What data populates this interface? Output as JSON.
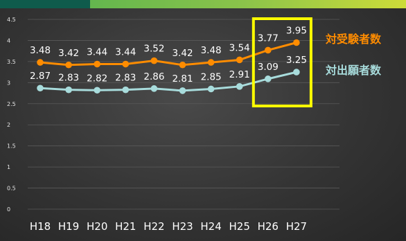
{
  "colors": {
    "series1": "#ff8c00",
    "series2": "#a8dcdc",
    "highlight": "#ffff00",
    "grid": "#5a5a5a"
  },
  "chart_data": {
    "type": "line",
    "categories": [
      "H18",
      "H19",
      "H20",
      "H21",
      "H22",
      "H23",
      "H24",
      "H25",
      "H26",
      "H27"
    ],
    "ylim": [
      0,
      4.5
    ],
    "yticks": [
      "0",
      "0.5",
      "1",
      "1.5",
      "2",
      "2.5",
      "3",
      "3.5",
      "4",
      "4.5"
    ],
    "grid": true,
    "series": [
      {
        "name": "対受験者数",
        "values": [
          3.48,
          3.42,
          3.44,
          3.44,
          3.52,
          3.42,
          3.48,
          3.54,
          3.77,
          3.95
        ],
        "labels": [
          "3.48",
          "3.42",
          "3.44",
          "3.44",
          "3.52",
          "3.42",
          "3.48",
          "3.54",
          "3.77",
          "3.95"
        ]
      },
      {
        "name": "対出願者数",
        "values": [
          2.87,
          2.83,
          2.82,
          2.83,
          2.86,
          2.81,
          2.85,
          2.91,
          3.09,
          3.25
        ],
        "labels": [
          "2.87",
          "2.83",
          "2.82",
          "2.83",
          "2.86",
          "2.81",
          "2.85",
          "2.91",
          "3.09",
          "3.25"
        ]
      }
    ],
    "highlight_categories": [
      "H26",
      "H27"
    ],
    "legend_placement": "right"
  }
}
